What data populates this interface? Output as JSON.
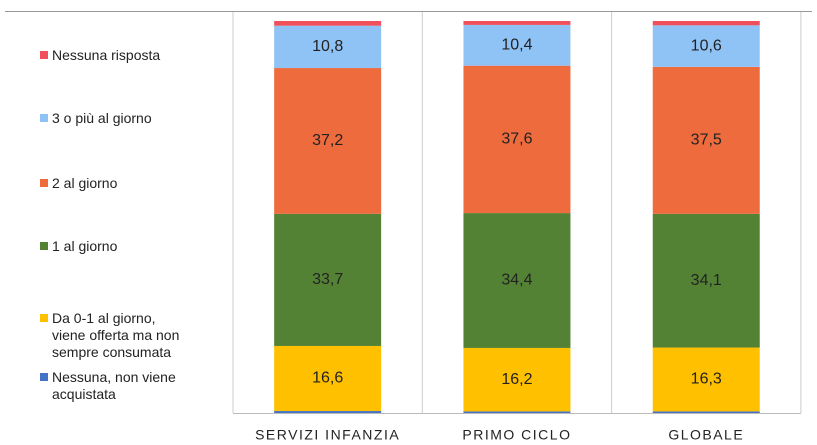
{
  "chart_data": {
    "type": "stacked_bar",
    "categories": [
      "SERVIZI INFANZIA",
      "PRIMO CICLO",
      "GLOBALE"
    ],
    "series": [
      {
        "name": "Nessuna, non viene\nacquistata",
        "color": "#4472c4",
        "values": [
          0.5,
          0.4,
          0.4
        ],
        "value_labels": [
          null,
          null,
          null
        ]
      },
      {
        "name": "Da 0-1 al giorno,\nviene offerta ma non\nsempre consumata",
        "color": "#ffc000",
        "values": [
          16.6,
          16.2,
          16.3
        ],
        "value_labels": [
          "16,6",
          "16,2",
          "16,3"
        ]
      },
      {
        "name": "1 al giorno",
        "color": "#548235",
        "values": [
          33.7,
          34.4,
          34.1
        ],
        "value_labels": [
          "33,7",
          "34,4",
          "34,1"
        ]
      },
      {
        "name": "2 al giorno",
        "color": "#ee6b3d",
        "values": [
          37.2,
          37.6,
          37.5
        ],
        "value_labels": [
          "37,2",
          "37,6",
          "37,5"
        ]
      },
      {
        "name": "3 o più al giorno",
        "color": "#8fc3f5",
        "values": [
          10.8,
          10.4,
          10.6
        ],
        "value_labels": [
          "10,8",
          "10,4",
          "10,6"
        ]
      },
      {
        "name": "Nessuna risposta",
        "color": "#f0505a",
        "values": [
          1.2,
          1.0,
          1.1
        ],
        "value_labels": [
          null,
          null,
          null
        ]
      }
    ]
  }
}
